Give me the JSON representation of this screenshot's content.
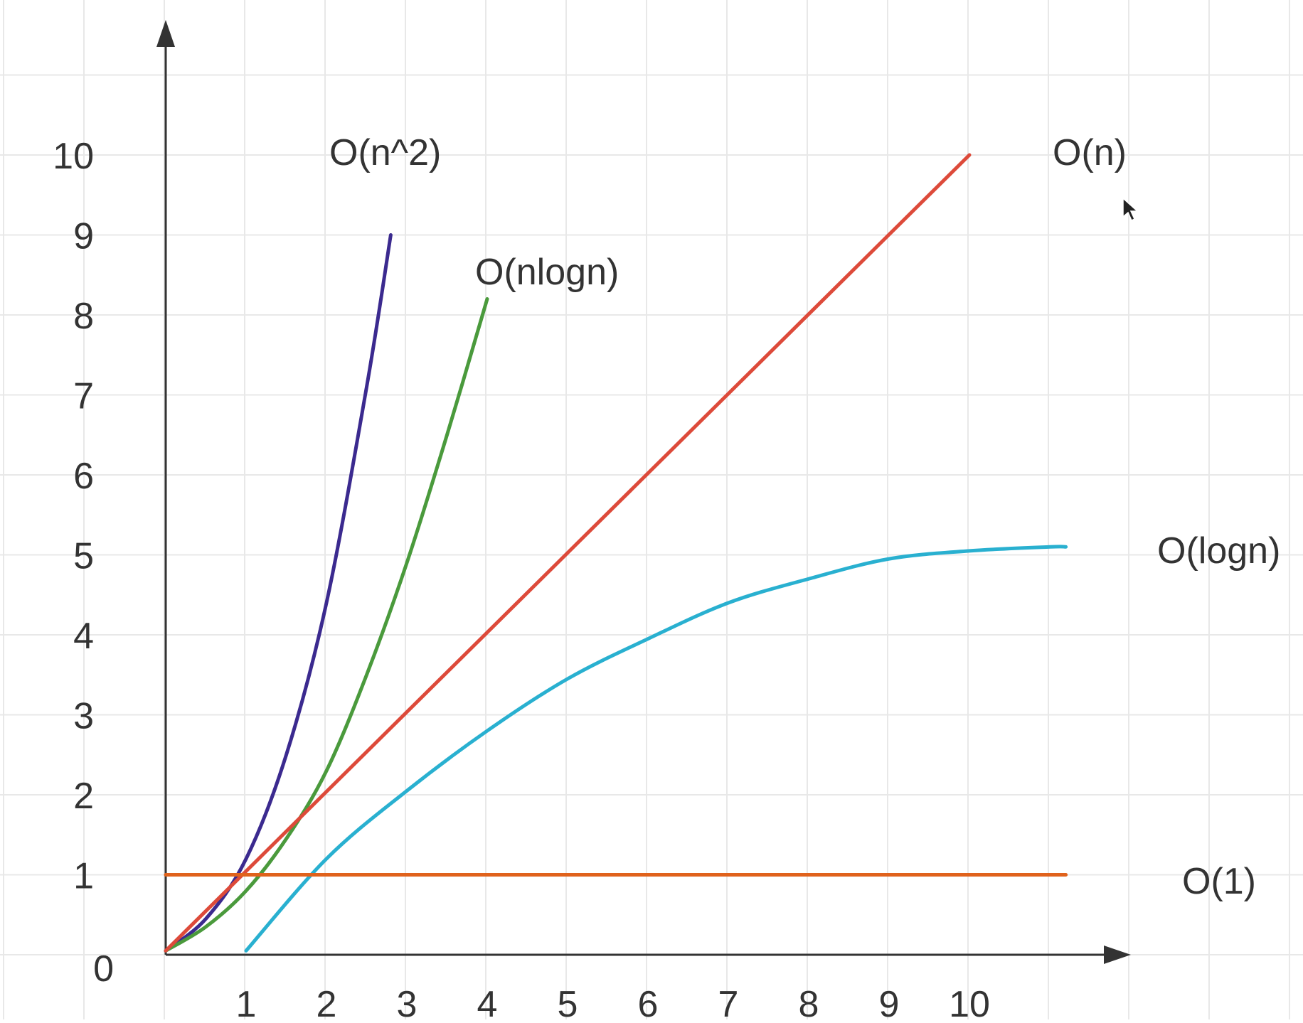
{
  "chart_data": {
    "type": "line",
    "grid": true,
    "xlim": [
      0,
      11.2
    ],
    "ylim": [
      0,
      10
    ],
    "x_ticks": [
      "1",
      "2",
      "3",
      "4",
      "5",
      "6",
      "7",
      "8",
      "9",
      "10"
    ],
    "y_ticks": [
      "0",
      "1",
      "2",
      "3",
      "4",
      "5",
      "6",
      "7",
      "8",
      "9",
      "10"
    ],
    "series": [
      {
        "name": "O(n^2)",
        "color": "#3b2a8f",
        "points": [
          [
            0,
            0.05
          ],
          [
            0.5,
            0.45
          ],
          [
            1,
            1.2
          ],
          [
            1.5,
            2.5
          ],
          [
            2,
            4.4
          ],
          [
            2.5,
            7.1
          ],
          [
            2.8,
            9.0
          ]
        ]
      },
      {
        "name": "O(nlogn)",
        "color": "#4a9a3c",
        "points": [
          [
            0,
            0.05
          ],
          [
            0.5,
            0.35
          ],
          [
            1,
            0.8
          ],
          [
            1.5,
            1.45
          ],
          [
            2,
            2.3
          ],
          [
            2.5,
            3.5
          ],
          [
            3,
            4.9
          ],
          [
            3.5,
            6.5
          ],
          [
            4,
            8.2
          ]
        ]
      },
      {
        "name": "O(n)",
        "color": "#dd4a3a",
        "points": [
          [
            0,
            0.05
          ],
          [
            10,
            10
          ]
        ]
      },
      {
        "name": "O(logn)",
        "color": "#29b0d0",
        "points": [
          [
            1,
            0.05
          ],
          [
            2,
            1.2
          ],
          [
            3,
            2.05
          ],
          [
            4,
            2.8
          ],
          [
            5,
            3.45
          ],
          [
            6,
            3.95
          ],
          [
            7,
            4.4
          ],
          [
            8,
            4.7
          ],
          [
            9,
            4.95
          ],
          [
            10,
            5.05
          ],
          [
            11,
            5.1
          ],
          [
            11.2,
            5.1
          ]
        ]
      },
      {
        "name": "O(1)",
        "color": "#e0621c",
        "points": [
          [
            0,
            1
          ],
          [
            11.2,
            1
          ]
        ]
      }
    ]
  }
}
